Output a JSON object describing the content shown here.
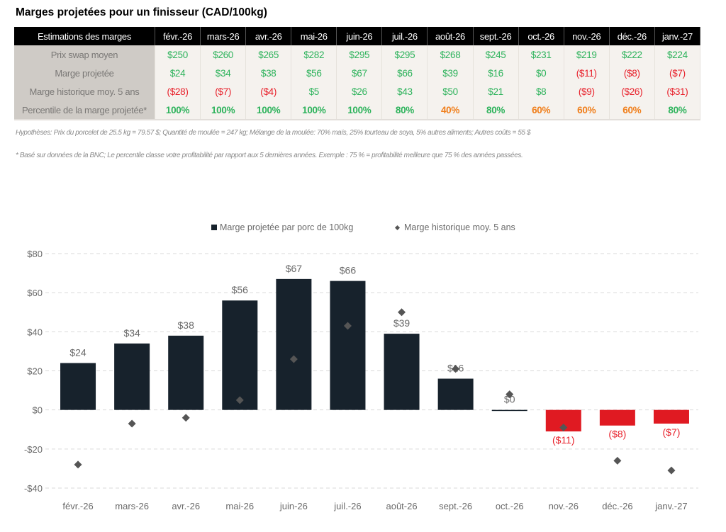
{
  "title": "Marges projetées pour un finisseur (CAD/100kg)",
  "table": {
    "header_label": "Estimations des marges",
    "months": [
      "févr.-26",
      "mars-26",
      "avr.-26",
      "mai-26",
      "juin-26",
      "juil.-26",
      "août-26",
      "sept.-26",
      "oct.-26",
      "nov.-26",
      "déc.-26",
      "janv.-27"
    ],
    "rows": [
      {
        "label": "Prix swap moyen",
        "bold": false,
        "cells": [
          {
            "text": "$250",
            "tone": "pos"
          },
          {
            "text": "$260",
            "tone": "pos"
          },
          {
            "text": "$265",
            "tone": "pos"
          },
          {
            "text": "$282",
            "tone": "pos"
          },
          {
            "text": "$295",
            "tone": "pos"
          },
          {
            "text": "$295",
            "tone": "pos"
          },
          {
            "text": "$268",
            "tone": "pos"
          },
          {
            "text": "$245",
            "tone": "pos"
          },
          {
            "text": "$231",
            "tone": "pos"
          },
          {
            "text": "$219",
            "tone": "pos"
          },
          {
            "text": "$222",
            "tone": "pos"
          },
          {
            "text": "$224",
            "tone": "pos"
          }
        ]
      },
      {
        "label": "Marge projetée",
        "bold": false,
        "cells": [
          {
            "text": "$24",
            "tone": "pos"
          },
          {
            "text": "$34",
            "tone": "pos"
          },
          {
            "text": "$38",
            "tone": "pos"
          },
          {
            "text": "$56",
            "tone": "pos"
          },
          {
            "text": "$67",
            "tone": "pos"
          },
          {
            "text": "$66",
            "tone": "pos"
          },
          {
            "text": "$39",
            "tone": "pos"
          },
          {
            "text": "$16",
            "tone": "pos"
          },
          {
            "text": "$0",
            "tone": "pos"
          },
          {
            "text": "($11)",
            "tone": "neg"
          },
          {
            "text": "($8)",
            "tone": "neg"
          },
          {
            "text": "($7)",
            "tone": "neg"
          }
        ]
      },
      {
        "label": "Marge historique moy. 5 ans",
        "bold": false,
        "cells": [
          {
            "text": "($28)",
            "tone": "neg"
          },
          {
            "text": "($7)",
            "tone": "neg"
          },
          {
            "text": "($4)",
            "tone": "neg"
          },
          {
            "text": "$5",
            "tone": "pos"
          },
          {
            "text": "$26",
            "tone": "pos"
          },
          {
            "text": "$43",
            "tone": "pos"
          },
          {
            "text": "$50",
            "tone": "pos"
          },
          {
            "text": "$21",
            "tone": "pos"
          },
          {
            "text": "$8",
            "tone": "pos"
          },
          {
            "text": "($9)",
            "tone": "neg"
          },
          {
            "text": "($26)",
            "tone": "neg"
          },
          {
            "text": "($31)",
            "tone": "neg"
          }
        ]
      },
      {
        "label": "Percentile de la marge projetée*",
        "bold": true,
        "cells": [
          {
            "text": "100%",
            "tone": "pos"
          },
          {
            "text": "100%",
            "tone": "pos"
          },
          {
            "text": "100%",
            "tone": "pos"
          },
          {
            "text": "100%",
            "tone": "pos"
          },
          {
            "text": "100%",
            "tone": "pos"
          },
          {
            "text": "80%",
            "tone": "pos"
          },
          {
            "text": "40%",
            "tone": "orange"
          },
          {
            "text": "80%",
            "tone": "pos"
          },
          {
            "text": "60%",
            "tone": "orange"
          },
          {
            "text": "60%",
            "tone": "orange"
          },
          {
            "text": "60%",
            "tone": "orange"
          },
          {
            "text": "80%",
            "tone": "pos"
          }
        ]
      }
    ]
  },
  "notes": {
    "hypotheses": "Hypothèses: Prix du porcelet de 25.5 kg = 79.57 $; Quantité de moulée = 247 kg; Mélange de la moulée: 70% maïs, 25% tourteau de soya, 5% autres aliments; Autres coûts = 55 $",
    "footnote": "* Basé sur données de la BNC; Le percentile classe votre profitabilité par rapport aux 5 dernières années. Exemple : 75 % = profitabilité meilleure que 75 % des années passées."
  },
  "colors": {
    "bar_positive": "#17222c",
    "bar_negative": "#e01a22",
    "marker": "#555555",
    "label_positive": "#6a6a6a",
    "label_negative": "#e8212b",
    "grid": "#d9d9d9",
    "axis_text": "#6a6a6a"
  },
  "chart_data": {
    "type": "bar",
    "title": "",
    "xlabel": "",
    "ylabel": "",
    "categories": [
      "févr.-26",
      "mars-26",
      "avr.-26",
      "mai-26",
      "juin-26",
      "juil.-26",
      "août-26",
      "sept.-26",
      "oct.-26",
      "nov.-26",
      "déc.-26",
      "janv.-27"
    ],
    "series": [
      {
        "name": "Marge projetée par porc de 100kg",
        "kind": "bar",
        "values": [
          24,
          34,
          38,
          56,
          67,
          66,
          39,
          16,
          0,
          -11,
          -8,
          -7
        ],
        "labels": [
          "$24",
          "$34",
          "$38",
          "$56",
          "$67",
          "$66",
          "$39",
          "$16",
          "$0",
          "($11)",
          "($8)",
          "($7)"
        ]
      },
      {
        "name": "Marge historique moy. 5 ans",
        "kind": "marker-diamond",
        "values": [
          -28,
          -7,
          -4,
          5,
          26,
          43,
          50,
          21,
          8,
          -9,
          -26,
          -31
        ]
      }
    ],
    "ylim": [
      -40,
      80
    ],
    "yticks": [
      80,
      60,
      40,
      20,
      0,
      -20,
      -40
    ],
    "ytick_labels": [
      "$80",
      "$60",
      "$40",
      "$20",
      "$0",
      "-$20",
      "-$40"
    ],
    "grid": true,
    "legend": "top-center",
    "legend_entries": [
      "Marge projetée par porc de 100kg",
      "Marge historique moy. 5 ans"
    ]
  }
}
